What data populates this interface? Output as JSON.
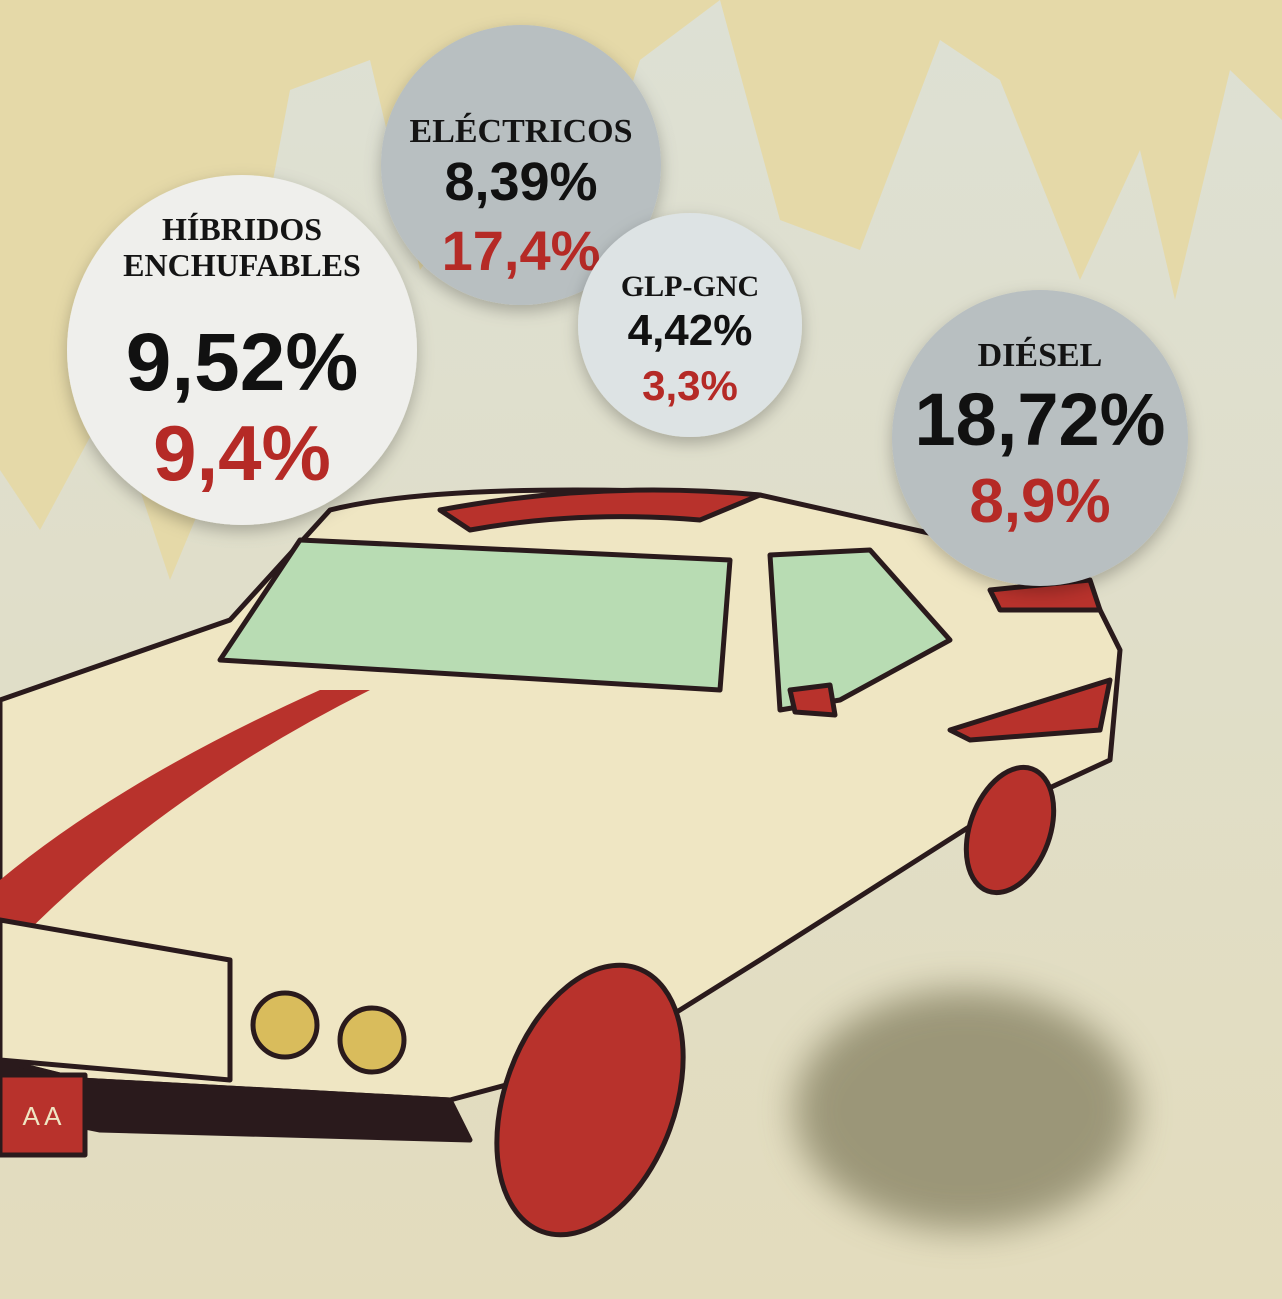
{
  "bubbles": [
    {
      "label": [
        "HÍBRIDOS",
        "ENCHUFABLES"
      ],
      "share": "9,52%",
      "change": "9,4%"
    },
    {
      "label": [
        "ELÉCTRICOS"
      ],
      "share": "8,39%",
      "change": "17,4%"
    },
    {
      "label": [
        "GLP-GNC"
      ],
      "share": "4,42%",
      "change": "3,3%"
    },
    {
      "label": [
        "DIÉSEL"
      ],
      "share": "18,72%",
      "change": "8,9%"
    }
  ],
  "plate": "A A"
}
